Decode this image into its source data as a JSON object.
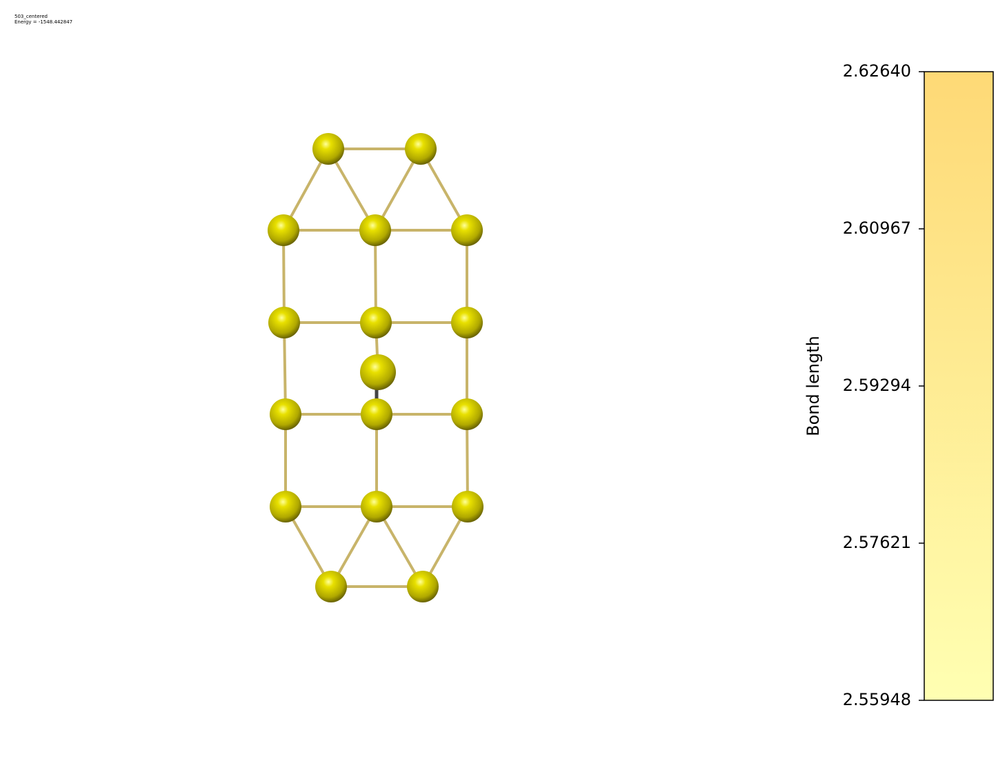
{
  "header": {
    "title": "503_centered",
    "subtitle": "Energy = -1548.442847"
  },
  "colorbar": {
    "label": "Bond length",
    "lim": [
      2.55948,
      2.6264
    ],
    "ticks": [
      2.55948,
      2.57621,
      2.59294,
      2.60967,
      {
        "value": 2.6264,
        "label": "2.62640"
      }
    ]
  }
}
